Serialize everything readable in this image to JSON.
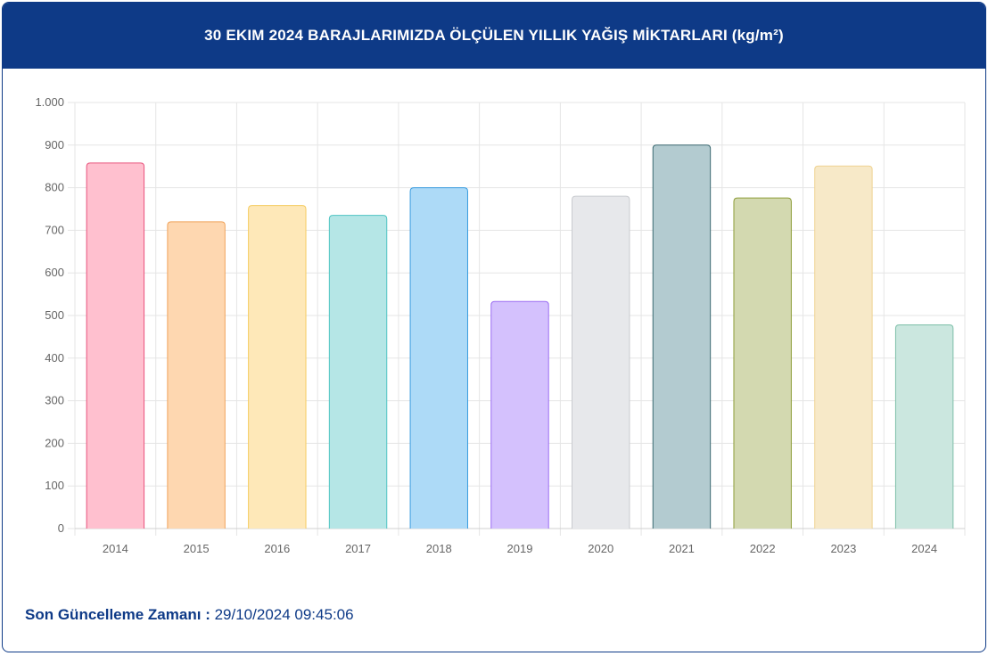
{
  "header": {
    "title": "30 EKIM 2024 BARAJLARIMIZDA ÖLÇÜLEN YILLIK YAĞIŞ MİKTARLARI (kg/m²)"
  },
  "footer": {
    "label": "Son Güncelleme Zamanı",
    "separator": ":",
    "value": "29/10/2024 09:45:06"
  },
  "colors": {
    "header_bg": "#0e3a87",
    "grid": "#e5e5e5"
  },
  "chart_data": {
    "type": "bar",
    "categories": [
      "2014",
      "2015",
      "2016",
      "2017",
      "2018",
      "2019",
      "2020",
      "2021",
      "2022",
      "2023",
      "2024"
    ],
    "values": [
      858,
      720,
      758,
      735,
      800,
      533,
      780,
      900,
      776,
      851,
      478
    ],
    "ylim": [
      0,
      1000
    ],
    "yticks": [
      0,
      100,
      200,
      300,
      400,
      500,
      600,
      700,
      800,
      900,
      1000
    ],
    "ytick_labels": [
      "0",
      "100",
      "200",
      "300",
      "400",
      "500",
      "600",
      "700",
      "800",
      "900",
      "1.000"
    ],
    "grid": true,
    "bar_fills": [
      "#ffc0cf",
      "#fed7b0",
      "#fee8b8",
      "#b5e6e6",
      "#addaf7",
      "#d4c1fd",
      "#e7e8eb",
      "#b3cbd0",
      "#d3d9b0",
      "#f7e9c8",
      "#cbe7df"
    ],
    "bar_strokes": [
      "#e8537c",
      "#f0a35b",
      "#f5cc60",
      "#4fc4c2",
      "#3a9de0",
      "#9b6ef2",
      "#c9cbcf",
      "#3d6b73",
      "#8e9d3a",
      "#efd392",
      "#7dbfa8"
    ]
  }
}
